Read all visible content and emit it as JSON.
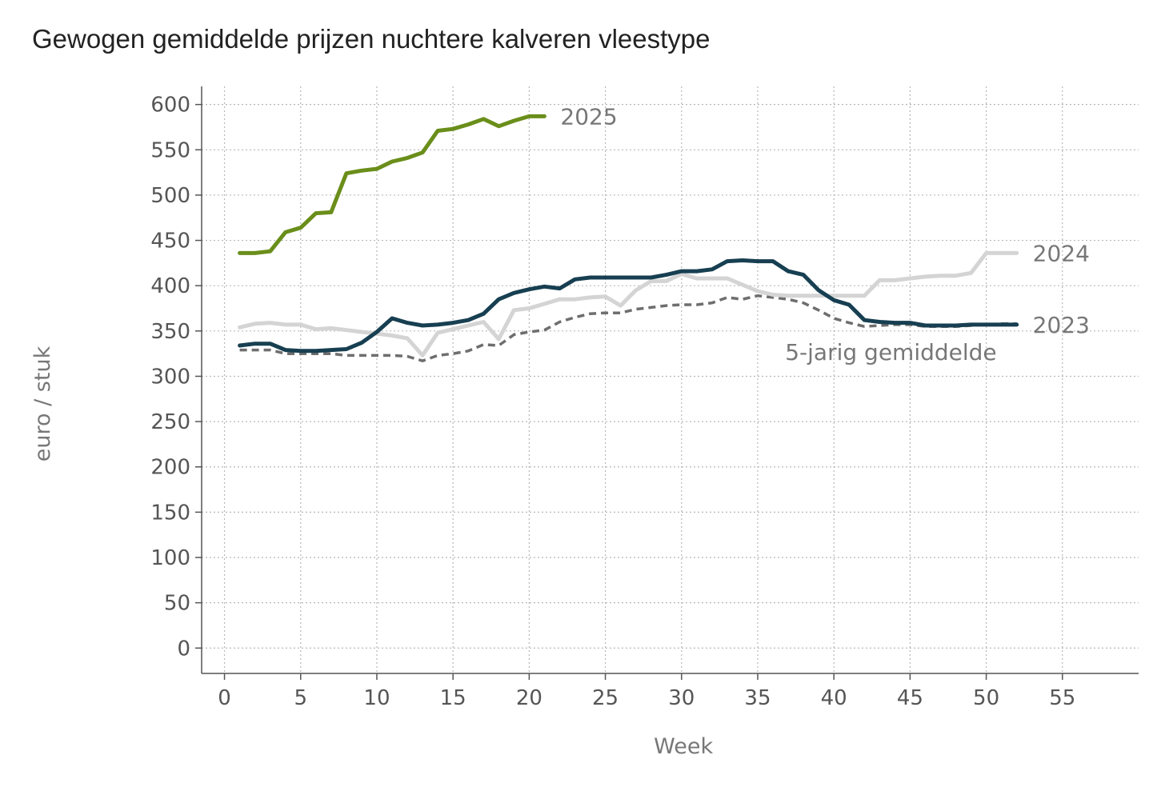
{
  "chart_data": {
    "type": "line",
    "title": "Gewogen gemiddelde prijzen nuchtere kalveren vleestype",
    "xlabel": "Week",
    "ylabel": "euro / stuk",
    "xlim": [
      -1.5,
      60
    ],
    "ylim": [
      -28,
      620
    ],
    "xticks": [
      0,
      5,
      10,
      15,
      20,
      25,
      30,
      35,
      40,
      45,
      50,
      55
    ],
    "yticks": [
      0,
      50,
      100,
      150,
      200,
      250,
      300,
      350,
      400,
      450,
      500,
      550,
      600
    ],
    "grid": true,
    "legend": "none (series labelled directly at line ends)",
    "series": [
      {
        "name": "5-jarig gemiddelde",
        "color": "#6e6e6e",
        "dashed": true,
        "x": [
          1,
          2,
          3,
          4,
          5,
          6,
          7,
          8,
          9,
          10,
          11,
          12,
          13,
          14,
          15,
          16,
          17,
          18,
          19,
          20,
          21,
          22,
          23,
          24,
          25,
          26,
          27,
          28,
          29,
          30,
          31,
          32,
          33,
          34,
          35,
          36,
          37,
          38,
          39,
          40,
          41,
          42,
          43,
          44,
          45,
          46,
          47,
          48,
          49,
          50,
          51,
          52
        ],
        "values": [
          329,
          329,
          329,
          325,
          325,
          325,
          325,
          323,
          323,
          323,
          323,
          322,
          317,
          323,
          325,
          328,
          335,
          334,
          346,
          349,
          351,
          360,
          365,
          369,
          370,
          370,
          374,
          376,
          378,
          379,
          379,
          381,
          387,
          385,
          389,
          387,
          385,
          381,
          373,
          364,
          359,
          355,
          356,
          357,
          357,
          355,
          355,
          355,
          356,
          357,
          358,
          358
        ]
      },
      {
        "name": "2024",
        "color": "#d4d4d4",
        "dashed": false,
        "x": [
          1,
          2,
          3,
          4,
          5,
          6,
          7,
          8,
          9,
          10,
          11,
          12,
          13,
          14,
          15,
          16,
          17,
          18,
          19,
          20,
          21,
          22,
          23,
          24,
          25,
          26,
          27,
          28,
          29,
          30,
          31,
          32,
          33,
          34,
          35,
          36,
          37,
          38,
          39,
          40,
          41,
          42,
          43,
          44,
          45,
          46,
          47,
          48,
          49,
          50,
          51,
          52
        ],
        "values": [
          354,
          358,
          359,
          357,
          357,
          352,
          353,
          351,
          349,
          347,
          345,
          342,
          323,
          348,
          352,
          356,
          360,
          341,
          373,
          375,
          380,
          385,
          385,
          387,
          388,
          378,
          395,
          405,
          405,
          413,
          408,
          408,
          408,
          401,
          394,
          390,
          389,
          389,
          389,
          389,
          389,
          389,
          406,
          406,
          408,
          410,
          411,
          411,
          414,
          436,
          436,
          436
        ]
      },
      {
        "name": "2023",
        "color": "#173f51",
        "dashed": false,
        "x": [
          1,
          2,
          3,
          4,
          5,
          6,
          7,
          8,
          9,
          10,
          11,
          12,
          13,
          14,
          15,
          16,
          17,
          18,
          19,
          20,
          21,
          22,
          23,
          24,
          25,
          26,
          27,
          28,
          29,
          30,
          31,
          32,
          33,
          34,
          35,
          36,
          37,
          38,
          39,
          40,
          41,
          42,
          43,
          44,
          45,
          46,
          47,
          48,
          49,
          50,
          51,
          52
        ],
        "values": [
          334,
          336,
          336,
          329,
          328,
          328,
          329,
          330,
          337,
          349,
          364,
          359,
          356,
          357,
          359,
          362,
          369,
          385,
          392,
          396,
          399,
          397,
          407,
          409,
          409,
          409,
          409,
          409,
          412,
          416,
          416,
          418,
          427,
          428,
          427,
          427,
          416,
          412,
          395,
          384,
          379,
          362,
          360,
          359,
          359,
          356,
          356,
          356,
          357,
          357,
          357,
          357
        ]
      },
      {
        "name": "2025",
        "color": "#6a8e1a",
        "dashed": false,
        "x": [
          1,
          2,
          3,
          4,
          5,
          6,
          7,
          8,
          9,
          10,
          11,
          12,
          13,
          14,
          15,
          16,
          17,
          18,
          19,
          20,
          21
        ],
        "values": [
          436,
          436,
          438,
          459,
          464,
          480,
          481,
          524,
          527,
          529,
          537,
          541,
          547,
          571,
          573,
          578,
          584,
          576,
          582,
          587,
          587
        ]
      }
    ]
  }
}
